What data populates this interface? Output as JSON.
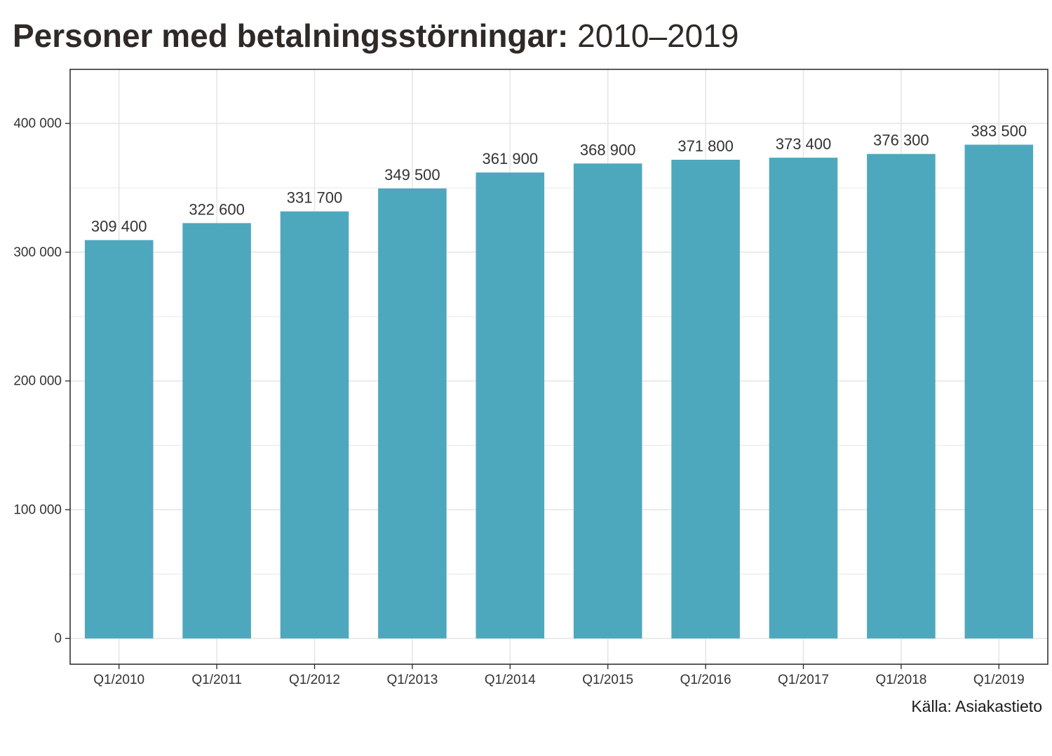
{
  "header": {
    "title_bold": "Personer med betalningsstörningar:",
    "title_period": "2010–2019"
  },
  "source": "Källa: Asiakastieto",
  "colors": {
    "bar": "#4ea8bd",
    "grid": "#e6e6e6",
    "panel_border": "#333333"
  },
  "chart_data": {
    "type": "bar",
    "categories": [
      "Q1/2010",
      "Q1/2011",
      "Q1/2012",
      "Q1/2013",
      "Q1/2014",
      "Q1/2015",
      "Q1/2016",
      "Q1/2017",
      "Q1/2018",
      "Q1/2019"
    ],
    "values": [
      309400,
      322600,
      331700,
      349500,
      361900,
      368900,
      371800,
      373400,
      376300,
      383500
    ],
    "data_labels": [
      "309 400",
      "322 600",
      "331 700",
      "349 500",
      "361 900",
      "368 900",
      "371 800",
      "373 400",
      "376 300",
      "383 500"
    ],
    "title": "Personer med betalningsstörningar: 2010–2019",
    "xlabel": "",
    "ylabel": "",
    "ylim": [
      -20000,
      442000
    ],
    "yticks": [
      0,
      100000,
      200000,
      300000,
      400000
    ],
    "ytick_labels": [
      "0",
      "100 000",
      "200 000",
      "300 000",
      "400 000"
    ],
    "grid": true,
    "legend": "none"
  }
}
